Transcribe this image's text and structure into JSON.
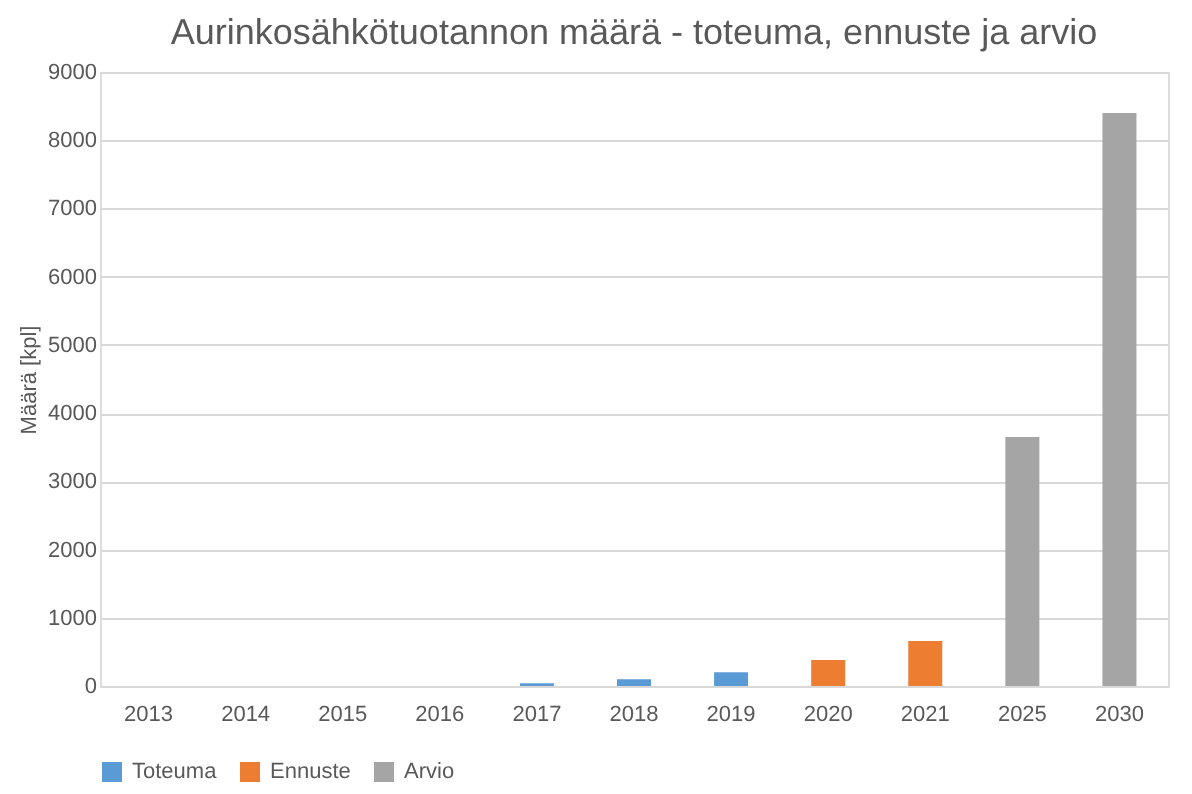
{
  "chart_data": {
    "type": "bar",
    "title": "Aurinkosähkötuotannon määrä - toteuma, ennuste ja arvio",
    "ylabel": "Määrä [kpl]",
    "categories": [
      "2013",
      "2014",
      "2015",
      "2016",
      "2017",
      "2018",
      "2019",
      "2020",
      "2021",
      "2025",
      "2030"
    ],
    "series": [
      {
        "name": "Toteuma",
        "color": "#5b9bd5",
        "values": [
          0,
          0,
          0,
          0,
          40,
          100,
          200,
          null,
          null,
          null,
          null
        ]
      },
      {
        "name": "Ennuste",
        "color": "#ed7d31",
        "values": [
          null,
          null,
          null,
          null,
          null,
          null,
          null,
          380,
          660,
          null,
          null
        ]
      },
      {
        "name": "Arvio",
        "color": "#a5a5a5",
        "values": [
          null,
          null,
          null,
          null,
          null,
          null,
          null,
          null,
          null,
          3650,
          8400
        ]
      }
    ],
    "ylim": [
      0,
      9000
    ],
    "yticks": [
      0,
      1000,
      2000,
      3000,
      4000,
      5000,
      6000,
      7000,
      8000,
      9000
    ],
    "grid": "y",
    "legend": "bottom"
  }
}
